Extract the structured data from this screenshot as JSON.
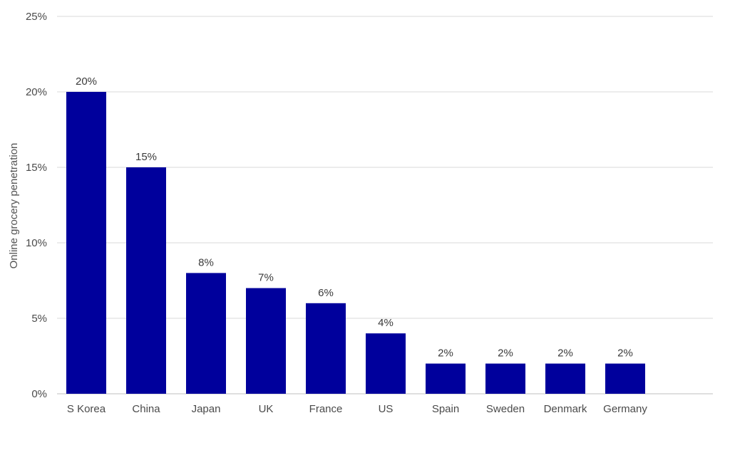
{
  "chart_data": {
    "type": "bar",
    "categories": [
      "S Korea",
      "China",
      "Japan",
      "UK",
      "France",
      "US",
      "Spain",
      "Sweden",
      "Denmark",
      "Germany"
    ],
    "values": [
      20,
      15,
      8,
      7,
      6,
      4,
      2,
      2,
      2,
      2
    ],
    "data_labels": [
      "20%",
      "15%",
      "8%",
      "7%",
      "6%",
      "4%",
      "2%",
      "2%",
      "2%",
      "2%"
    ],
    "title": "",
    "xlabel": "",
    "ylabel": "Online grocery penetration",
    "ylim": [
      0,
      25
    ],
    "yticks": [
      0,
      5,
      10,
      15,
      20,
      25
    ],
    "ytick_labels": [
      "0%",
      "5%",
      "10%",
      "15%",
      "20%",
      "25%"
    ],
    "grid": true,
    "bar_color": "#00009C"
  }
}
